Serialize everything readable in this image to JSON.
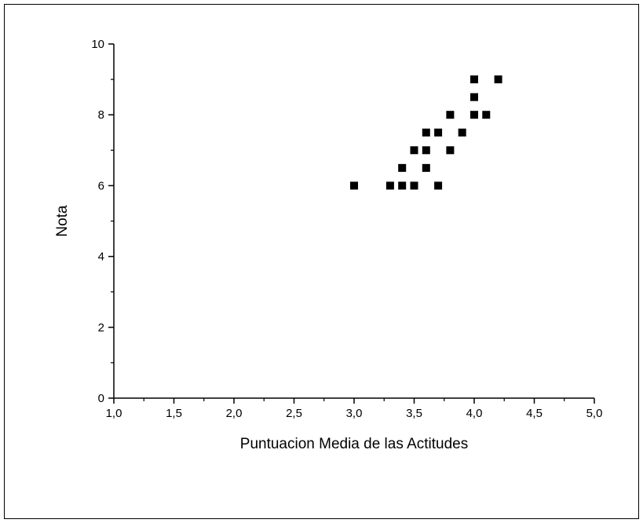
{
  "chart_data": {
    "type": "scatter",
    "title": "",
    "xlabel": "Puntuacion Media de las Actitudes",
    "ylabel": "Nota",
    "xlim": [
      1.0,
      5.0
    ],
    "ylim": [
      0,
      10
    ],
    "x_ticks": [
      "1,0",
      "1,5",
      "2,0",
      "2,5",
      "3,0",
      "3,5",
      "4,0",
      "4,5",
      "5,0"
    ],
    "y_ticks": [
      "0",
      "2",
      "4",
      "6",
      "8",
      "10"
    ],
    "grid": false,
    "legend": "none",
    "marker": "square",
    "marker_color": "#000000",
    "points": [
      {
        "x": 3.0,
        "y": 6.0
      },
      {
        "x": 3.3,
        "y": 6.0
      },
      {
        "x": 3.4,
        "y": 6.0
      },
      {
        "x": 3.4,
        "y": 6.5
      },
      {
        "x": 3.5,
        "y": 6.0
      },
      {
        "x": 3.5,
        "y": 7.0
      },
      {
        "x": 3.6,
        "y": 6.5
      },
      {
        "x": 3.6,
        "y": 7.0
      },
      {
        "x": 3.6,
        "y": 7.5
      },
      {
        "x": 3.7,
        "y": 6.0
      },
      {
        "x": 3.7,
        "y": 7.5
      },
      {
        "x": 3.8,
        "y": 7.0
      },
      {
        "x": 3.8,
        "y": 8.0
      },
      {
        "x": 3.9,
        "y": 7.5
      },
      {
        "x": 4.0,
        "y": 8.0
      },
      {
        "x": 4.0,
        "y": 8.5
      },
      {
        "x": 4.0,
        "y": 9.0
      },
      {
        "x": 4.1,
        "y": 8.0
      },
      {
        "x": 4.2,
        "y": 9.0
      }
    ]
  }
}
